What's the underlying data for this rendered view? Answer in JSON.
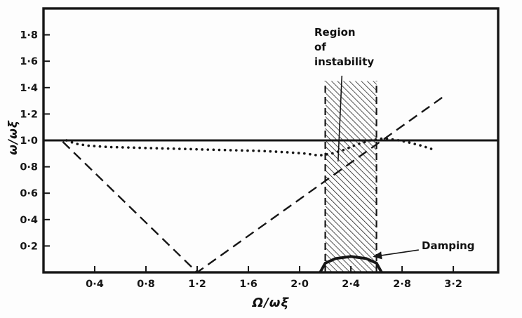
{
  "chart_data": {
    "type": "line",
    "title": "",
    "xlabel": "Ω/ωξ",
    "ylabel": "ω/ωξ",
    "xlim": [
      0,
      3.55
    ],
    "ylim": [
      0,
      2.0
    ],
    "grid": false,
    "legend": false,
    "x_ticks": [
      0.4,
      0.8,
      1.2,
      1.6,
      2.0,
      2.4,
      2.8,
      3.2
    ],
    "x_tick_labels": [
      "0·4",
      "0·8",
      "1·2",
      "1·6",
      "2·0",
      "2·4",
      "2·8",
      "3·2"
    ],
    "y_ticks": [
      0.2,
      0.4,
      0.6,
      0.8,
      1.0,
      1.2,
      1.4,
      1.6,
      1.8
    ],
    "y_tick_labels": [
      "0·2",
      "0·4",
      "0·6",
      "0·8",
      "1·0",
      "1·2",
      "1·4",
      "1·6",
      "1·8"
    ],
    "series": [
      {
        "name": "solid-unity-line",
        "style": "solid",
        "width": 3,
        "points": [
          [
            0,
            1.0
          ],
          [
            3.55,
            1.0
          ]
        ]
      },
      {
        "name": "dotted-curve",
        "style": "dotted",
        "width": 3.6,
        "points": [
          [
            0.18,
            1.0
          ],
          [
            0.25,
            0.975
          ],
          [
            0.35,
            0.96
          ],
          [
            0.5,
            0.95
          ],
          [
            0.7,
            0.945
          ],
          [
            0.9,
            0.94
          ],
          [
            1.1,
            0.935
          ],
          [
            1.3,
            0.93
          ],
          [
            1.5,
            0.925
          ],
          [
            1.7,
            0.92
          ],
          [
            1.9,
            0.91
          ],
          [
            2.05,
            0.9
          ],
          [
            2.15,
            0.885
          ],
          [
            2.25,
            0.9
          ],
          [
            2.35,
            0.93
          ],
          [
            2.45,
            0.97
          ],
          [
            2.55,
            1.0
          ],
          [
            2.65,
            1.015
          ],
          [
            2.75,
            1.005
          ],
          [
            2.85,
            0.985
          ],
          [
            2.95,
            0.96
          ],
          [
            3.03,
            0.935
          ]
        ]
      },
      {
        "name": "dashed-line",
        "style": "dashed",
        "width": 2.4,
        "points": [
          [
            0.15,
            0.99
          ],
          [
            1.2,
            0.0
          ],
          [
            3.12,
            1.33
          ]
        ]
      },
      {
        "name": "damping-curve",
        "style": "solid",
        "width": 4,
        "points": [
          [
            2.16,
            0.0
          ],
          [
            2.2,
            0.07
          ],
          [
            2.28,
            0.105
          ],
          [
            2.4,
            0.12
          ],
          [
            2.52,
            0.105
          ],
          [
            2.6,
            0.07
          ],
          [
            2.64,
            0.0
          ]
        ]
      }
    ],
    "instability_region": {
      "x0": 2.2,
      "x1": 2.6,
      "y0": 0,
      "y1": 1.45
    },
    "annotations": {
      "instability_label_lines": [
        "Region",
        "of",
        "instability"
      ],
      "damping_label": "Damping",
      "leaders": [
        {
          "name": "instability-leader",
          "x1": 2.33,
          "y1": 1.49,
          "x2": 2.3,
          "y2": 0.84,
          "arrow": false
        },
        {
          "name": "damping-leader",
          "x1": 2.93,
          "y1": 0.17,
          "x2": 2.58,
          "y2": 0.12,
          "arrow": true
        }
      ]
    }
  }
}
